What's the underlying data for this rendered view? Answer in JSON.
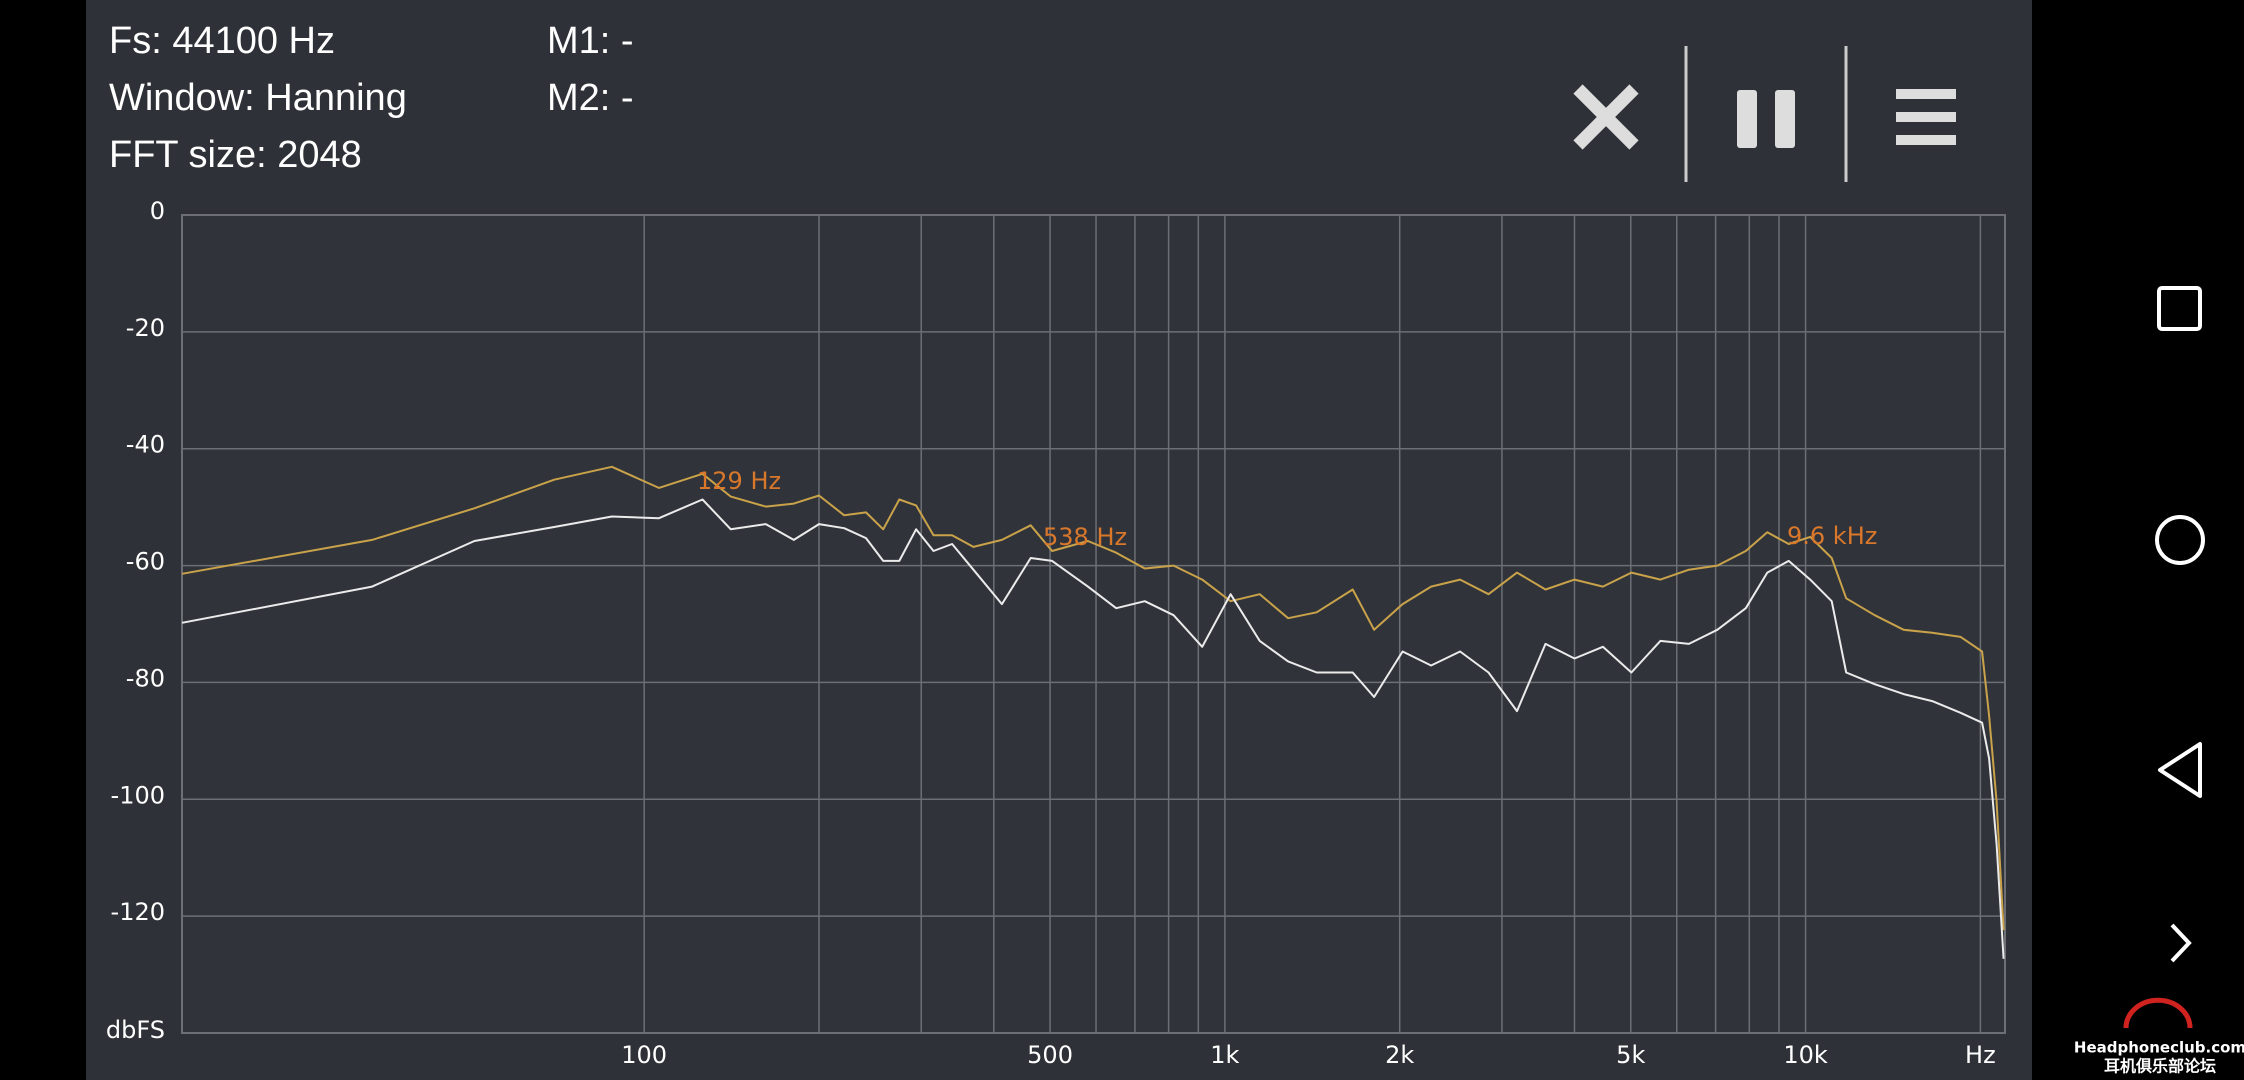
{
  "header": {
    "fs": "Fs: 44100 Hz",
    "window": "Window: Hanning",
    "fft": "FFT size: 2048",
    "m1": "M1: -",
    "m2": "M2: -"
  },
  "chart_data": {
    "type": "line",
    "x_scale": "log",
    "grid": true,
    "xlim": [
      16,
      22050
    ],
    "ylim": [
      -140,
      0
    ],
    "xticks": [
      100,
      500,
      {
        "value": 1000,
        "label": "1k"
      },
      {
        "value": 2000,
        "label": "2k"
      },
      {
        "value": 5000,
        "label": "5k"
      },
      {
        "value": 10000,
        "label": "10k"
      },
      {
        "value": 20000,
        "label": "Hz"
      }
    ],
    "x_minor_grid": [
      200,
      300,
      400,
      600,
      700,
      800,
      900,
      3000,
      4000,
      6000,
      7000,
      8000,
      9000
    ],
    "yticks": [
      0,
      -20,
      -40,
      -60,
      -80,
      -100,
      -120
    ],
    "y_label": "dbFS",
    "annotations": [
      "129 Hz",
      "538 Hz",
      "9.6  kHz"
    ],
    "annotation_color": "#d9772b",
    "x": [
      16,
      34,
      51,
      70,
      88,
      106,
      126,
      141,
      162,
      181,
      200,
      221,
      241,
      258,
      275,
      294,
      315,
      339,
      369,
      413,
      463,
      504,
      581,
      650,
      728,
      816,
      914,
      1023,
      1148,
      1285,
      1439,
      1660,
      1807,
      2023,
      2265,
      2541,
      2844,
      3184,
      3565,
      4000,
      4477,
      5012,
      5623,
      6295,
      7047,
      7889,
      8590,
      9354,
      10186,
      11092,
      11749,
      13152,
      14757,
      16520,
      18493,
      20137,
      20701,
      21330,
      21928
    ],
    "series": [
      {
        "color": "#c9a24a",
        "values": [
          -61.4,
          -55.6,
          -50.2,
          -45.3,
          -43.1,
          -46.7,
          -44.3,
          -48.2,
          -49.9,
          -49.4,
          -48.0,
          -51.4,
          -50.9,
          -53.8,
          -48.7,
          -49.7,
          -54.8,
          -54.8,
          -56.8,
          -55.6,
          -53.1,
          -57.5,
          -55.8,
          -57.8,
          -60.5,
          -60.0,
          -62.4,
          -66.1,
          -64.9,
          -69.0,
          -68.0,
          -64.1,
          -71.0,
          -66.6,
          -63.6,
          -62.4,
          -64.9,
          -61.2,
          -64.1,
          -62.4,
          -63.6,
          -61.2,
          -62.4,
          -60.7,
          -60.0,
          -57.5,
          -54.3,
          -56.3,
          -55.1,
          -58.7,
          -65.6,
          -68.5,
          -71.0,
          -71.5,
          -72.2,
          -74.7,
          -85.7,
          -100.4,
          -122.4
        ]
      },
      {
        "color": "#ebebeb",
        "values": [
          -69.8,
          -63.6,
          -55.8,
          -53.4,
          -51.6,
          -51.9,
          -48.7,
          -53.8,
          -52.9,
          -55.6,
          -52.9,
          -53.6,
          -55.3,
          -59.2,
          -59.2,
          -53.8,
          -57.5,
          -56.3,
          -60.7,
          -66.6,
          -58.7,
          -59.2,
          -63.6,
          -67.3,
          -66.1,
          -68.5,
          -73.9,
          -64.9,
          -72.9,
          -76.4,
          -78.3,
          -78.3,
          -82.5,
          -74.7,
          -77.1,
          -74.7,
          -78.3,
          -84.9,
          -73.4,
          -75.9,
          -73.9,
          -78.3,
          -72.9,
          -73.4,
          -71.0,
          -67.3,
          -61.2,
          -59.2,
          -62.4,
          -66.1,
          -78.3,
          -80.3,
          -82.0,
          -83.2,
          -85.2,
          -86.9,
          -93.0,
          -107.7,
          -127.3
        ]
      }
    ]
  },
  "watermark": {
    "site": "Headphoneclub.com",
    "cn": "耳机俱乐部论坛"
  }
}
